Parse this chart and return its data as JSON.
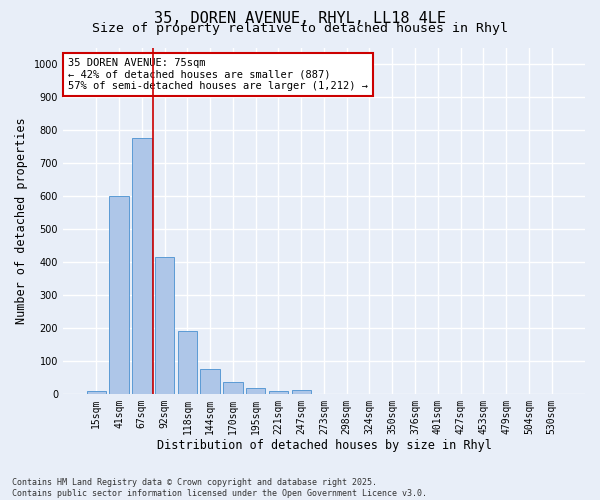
{
  "title_line1": "35, DOREN AVENUE, RHYL, LL18 4LE",
  "title_line2": "Size of property relative to detached houses in Rhyl",
  "xlabel": "Distribution of detached houses by size in Rhyl",
  "ylabel": "Number of detached properties",
  "categories": [
    "15sqm",
    "41sqm",
    "67sqm",
    "92sqm",
    "118sqm",
    "144sqm",
    "170sqm",
    "195sqm",
    "221sqm",
    "247sqm",
    "273sqm",
    "298sqm",
    "324sqm",
    "350sqm",
    "376sqm",
    "401sqm",
    "427sqm",
    "453sqm",
    "479sqm",
    "504sqm",
    "530sqm"
  ],
  "values": [
    10,
    600,
    775,
    415,
    190,
    75,
    37,
    17,
    10,
    12,
    0,
    0,
    0,
    0,
    0,
    0,
    0,
    0,
    0,
    0,
    0
  ],
  "bar_color": "#aec6e8",
  "bar_edge_color": "#5b9bd5",
  "ylim": [
    0,
    1050
  ],
  "yticks": [
    0,
    100,
    200,
    300,
    400,
    500,
    600,
    700,
    800,
    900,
    1000
  ],
  "vline_x": 2.5,
  "vline_color": "#cc0000",
  "annotation_text": "35 DOREN AVENUE: 75sqm\n← 42% of detached houses are smaller (887)\n57% of semi-detached houses are larger (1,212) →",
  "annotation_box_color": "#ffffff",
  "annotation_box_edge": "#cc0000",
  "background_color": "#e8eef8",
  "grid_color": "#ffffff",
  "footer_line1": "Contains HM Land Registry data © Crown copyright and database right 2025.",
  "footer_line2": "Contains public sector information licensed under the Open Government Licence v3.0.",
  "title_fontsize": 11,
  "subtitle_fontsize": 9.5,
  "tick_fontsize": 7,
  "label_fontsize": 8.5,
  "annotation_fontsize": 7.5
}
